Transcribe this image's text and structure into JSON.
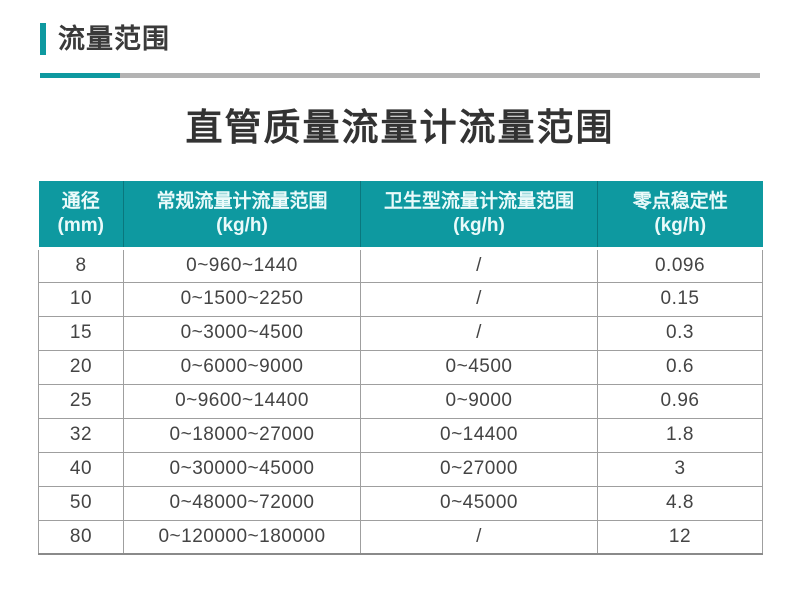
{
  "header": {
    "section_title": "流量范围"
  },
  "main": {
    "title": "直管质量流量计流量范围"
  },
  "table": {
    "columns": [
      {
        "label": "通径",
        "unit": "(mm)"
      },
      {
        "label": "常规流量计流量范围",
        "unit": "(kg/h)"
      },
      {
        "label": "卫生型流量计流量范围",
        "unit": "(kg/h)"
      },
      {
        "label": "零点稳定性",
        "unit": "(kg/h)"
      }
    ],
    "rows": [
      [
        "8",
        "0~960~1440",
        "/",
        "0.096"
      ],
      [
        "10",
        "0~1500~2250",
        "/",
        "0.15"
      ],
      [
        "15",
        "0~3000~4500",
        "/",
        "0.3"
      ],
      [
        "20",
        "0~6000~9000",
        "0~4500",
        "0.6"
      ],
      [
        "25",
        "0~9600~14400",
        "0~9000",
        "0.96"
      ],
      [
        "32",
        "0~18000~27000",
        "0~14400",
        "1.8"
      ],
      [
        "40",
        "0~30000~45000",
        "0~27000",
        "3"
      ],
      [
        "50",
        "0~48000~72000",
        "0~45000",
        "4.8"
      ],
      [
        "80",
        "0~120000~180000",
        "/",
        "12"
      ]
    ]
  },
  "colors": {
    "accent": "#0e99a0",
    "divider_gray": "#b3b3b3",
    "border_gray": "#9f9f9f",
    "title_color": "#3a3a3a",
    "cell_color": "#444444",
    "header_text": "#eafafa"
  }
}
